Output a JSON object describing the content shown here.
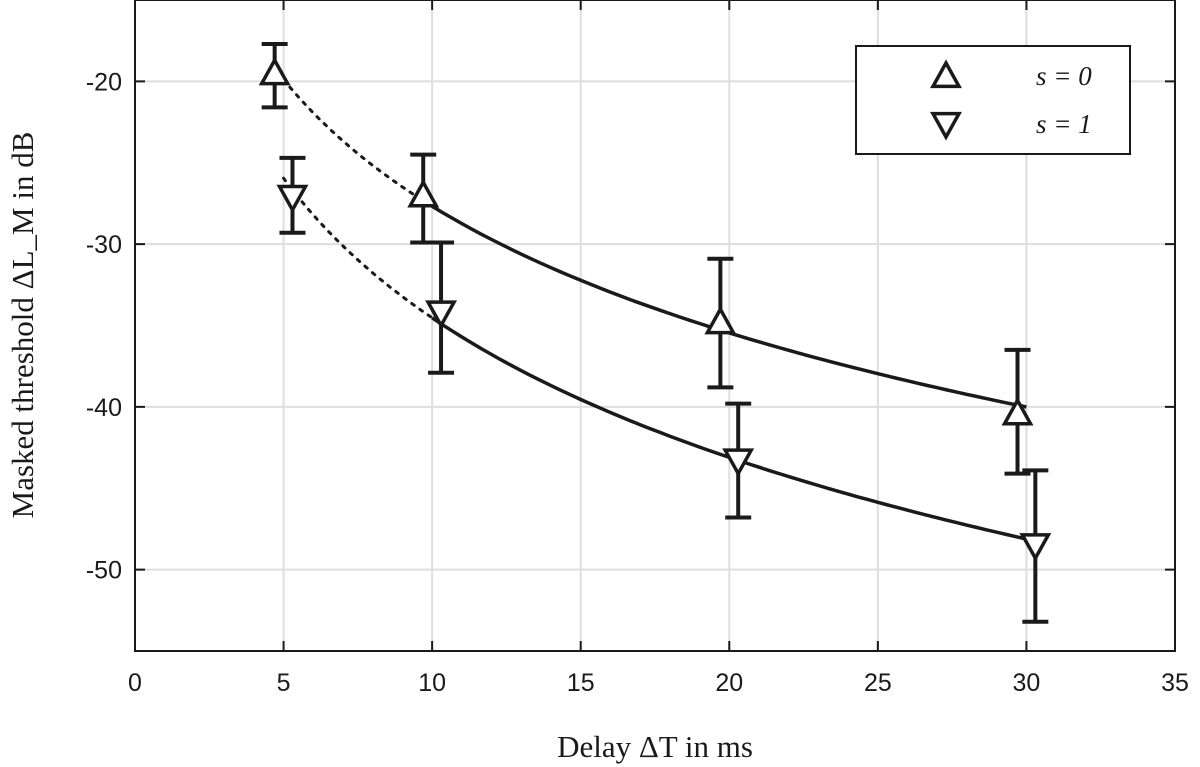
{
  "chart_data": {
    "type": "line",
    "xlabel": "Delay ΔT in ms",
    "ylabel": "Masked threshold ΔL_M in dB",
    "xlim": [
      0,
      35
    ],
    "ylim": [
      -55,
      -15
    ],
    "xticks": [
      0,
      5,
      10,
      15,
      20,
      25,
      30,
      35
    ],
    "yticks": [
      -20,
      -30,
      -40,
      -50
    ],
    "grid": true,
    "legend_position": "top-right",
    "series": [
      {
        "name": "s = 0",
        "marker": "triangle-up",
        "points": [
          {
            "x": 4.7,
            "y": -19.5,
            "err_low": -21.6,
            "err_high": -17.7
          },
          {
            "x": 9.7,
            "y": -27.0,
            "err_low": -29.9,
            "err_high": -24.5
          },
          {
            "x": 19.7,
            "y": -34.8,
            "err_low": -38.8,
            "err_high": -30.9
          },
          {
            "x": 29.7,
            "y": -40.4,
            "err_low": -44.1,
            "err_high": -36.5
          }
        ],
        "fit_solid": {
          "x0": 10,
          "x1": 30
        },
        "fit_dotted": {
          "x0": 5,
          "x1": 10
        }
      },
      {
        "name": "s = 1",
        "marker": "triangle-down",
        "points": [
          {
            "x": 5.3,
            "y": -27.1,
            "err_low": -29.3,
            "err_high": -24.7
          },
          {
            "x": 10.3,
            "y": -34.2,
            "err_low": -37.9,
            "err_high": -29.9
          },
          {
            "x": 20.3,
            "y": -43.3,
            "err_low": -46.8,
            "err_high": -39.8
          },
          {
            "x": 30.3,
            "y": -48.5,
            "err_low": -53.2,
            "err_high": -43.9
          }
        ],
        "fit_solid": {
          "x0": 10,
          "x1": 30
        },
        "fit_dotted": {
          "x0": 5,
          "x1": 10
        }
      }
    ]
  }
}
